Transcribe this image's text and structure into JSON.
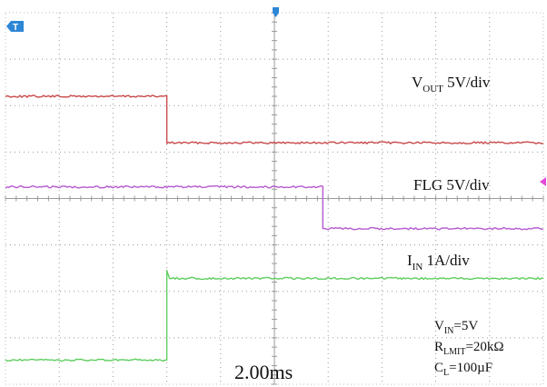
{
  "chart_data": {
    "type": "line",
    "instrument": "oscilloscope",
    "timebase": "2.00ms",
    "grid": true,
    "markers": {
      "trigger_position_icon": "trigger-marker-top",
      "ground_marker_icon": "channel-marker-left",
      "trigger_level_icon": "trigger-level-arrow-right"
    },
    "colors": {
      "vout": "#c8484a",
      "flg": "#b65ad0",
      "iin": "#5fce5f",
      "grid": "#9a9a9a",
      "marker": "#2d87d6",
      "trigger_level": "#e24bd8"
    },
    "series": [
      {
        "name": "V_OUT 5V/div",
        "label_main": "V",
        "label_sub": "OUT",
        "label_rest": " 5V/div",
        "scale": "5V/div",
        "x_div": [
          0,
          3.0,
          3.0,
          10
        ],
        "y_div": [
          6.2,
          6.2,
          5.2,
          5.2
        ]
      },
      {
        "name": "FLG 5V/div",
        "label_main": "FLG 5V/div",
        "label_sub": "",
        "label_rest": "",
        "scale": "5V/div",
        "x_div": [
          0,
          5.9,
          5.9,
          10
        ],
        "y_div": [
          4.25,
          4.25,
          3.35,
          3.35
        ]
      },
      {
        "name": "I_IN 1A/div",
        "label_main": "I",
        "label_sub": "IN",
        "label_rest": " 1A/div",
        "scale": "1A/div",
        "x_div": [
          0,
          3.0,
          3.0,
          3.05,
          10
        ],
        "y_div": [
          0.52,
          0.52,
          2.45,
          2.28,
          2.28
        ]
      }
    ],
    "conditions": [
      {
        "main": "V",
        "sub": "IN",
        "rest": "=5V"
      },
      {
        "main": "R",
        "sub": "LMIT",
        "rest": "=20kΩ"
      },
      {
        "main": "C",
        "sub": "L",
        "rest": "=100µF"
      }
    ]
  }
}
